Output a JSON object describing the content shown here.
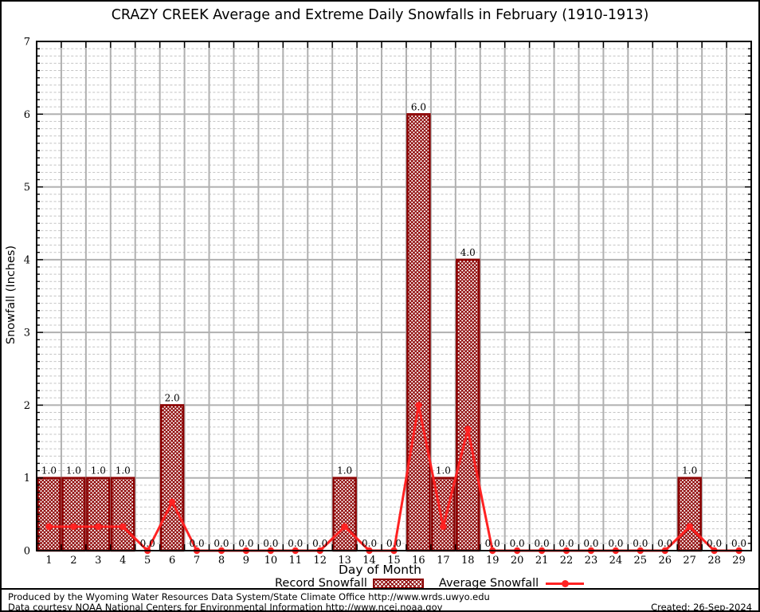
{
  "title": "CRAZY CREEK Average and Extreme Daily Snowfalls in February (1910-1913)",
  "chart_data": {
    "type": "bar",
    "subtype": "bar-with-line-overlay",
    "title": "CRAZY CREEK Average and Extreme Daily Snowfalls in February (1910-1913)",
    "xlabel": "Day of Month",
    "ylabel": "Snowfall (Inches)",
    "ylim": [
      0,
      7
    ],
    "y_major_step": 1,
    "y_minor_step": 0.1,
    "grid": "major solid gray, minor dashed; vertical lines at day boundaries",
    "legend_position": "bottom",
    "x": [
      1,
      2,
      3,
      4,
      5,
      6,
      7,
      8,
      9,
      10,
      11,
      12,
      13,
      14,
      15,
      16,
      17,
      18,
      19,
      20,
      21,
      22,
      23,
      24,
      25,
      26,
      27,
      28,
      29
    ],
    "series": [
      {
        "name": "Record Snowfall",
        "type": "bar",
        "values": [
          1.0,
          1.0,
          1.0,
          1.0,
          0.0,
          2.0,
          0.0,
          0.0,
          0.0,
          0.0,
          0.0,
          0.0,
          1.0,
          0.0,
          0.0,
          6.0,
          1.0,
          4.0,
          0.0,
          0.0,
          0.0,
          0.0,
          0.0,
          0.0,
          0.0,
          0.0,
          1.0,
          0.0,
          0.0
        ],
        "value_labels_shown": true
      },
      {
        "name": "Average Snowfall",
        "type": "line",
        "values": [
          0.33,
          0.33,
          0.33,
          0.33,
          0,
          0.67,
          0,
          0,
          0,
          0,
          0,
          0,
          0.33,
          0,
          0,
          2.0,
          0.33,
          1.67,
          0,
          0,
          0,
          0,
          0,
          0,
          0,
          0,
          0.33,
          0,
          0
        ]
      }
    ]
  },
  "legend": {
    "record_label": "Record Snowfall",
    "average_label": "Average Snowfall"
  },
  "footer": {
    "line1": "Produced by the Wyoming Water Resources Data System/State Climate Office http://www.wrds.uwyo.edu",
    "line2": "Data courtesy NOAA National Centers for Environmental Information http://www.ncei.noaa.gov",
    "created": "Created: 26-Sep-2024"
  },
  "colors": {
    "bar_edge": "#8b0000",
    "bar_hatch": "#8b0000",
    "line": "#ff2222",
    "grid_major": "#b0b0b0",
    "grid_minor": "#c4c4c4",
    "axis": "#000000",
    "text": "#000000"
  }
}
